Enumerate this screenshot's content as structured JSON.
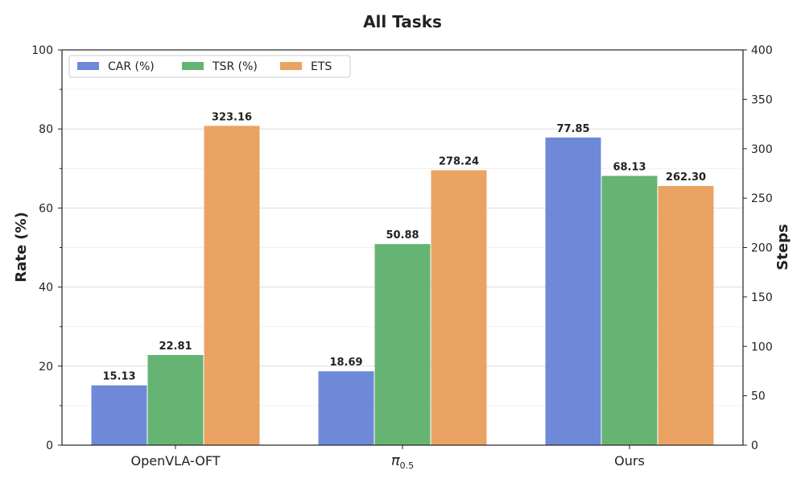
{
  "chart_data": {
    "type": "bar",
    "title": "All Tasks",
    "categories": [
      "OpenVLA-OFT",
      "π",
      "Ours"
    ],
    "category_subscripts": [
      "",
      "0.5",
      ""
    ],
    "y_left": {
      "label": "Rate (%)",
      "lim": [
        0,
        100
      ],
      "ticks": [
        0,
        20,
        40,
        60,
        80,
        100
      ]
    },
    "y_right": {
      "label": "Steps",
      "lim": [
        0,
        400
      ],
      "ticks": [
        0,
        50,
        100,
        150,
        200,
        250,
        300,
        350,
        400
      ]
    },
    "series": [
      {
        "name": "CAR (%)",
        "axis": "left",
        "color": "#6f89d9",
        "values": [
          15.13,
          18.69,
          77.85
        ],
        "labels": [
          "15.13",
          "18.69",
          "77.85"
        ]
      },
      {
        "name": "TSR (%)",
        "axis": "left",
        "color": "#65b473",
        "values": [
          22.81,
          50.88,
          68.13
        ],
        "labels": [
          "22.81",
          "50.88",
          "68.13"
        ]
      },
      {
        "name": "ETS",
        "axis": "right",
        "color": "#eba363",
        "values": [
          323.16,
          278.24,
          262.3
        ],
        "labels": [
          "323.16",
          "278.24",
          "262.30"
        ]
      }
    ],
    "grid": true,
    "legend_position": "top-left"
  }
}
